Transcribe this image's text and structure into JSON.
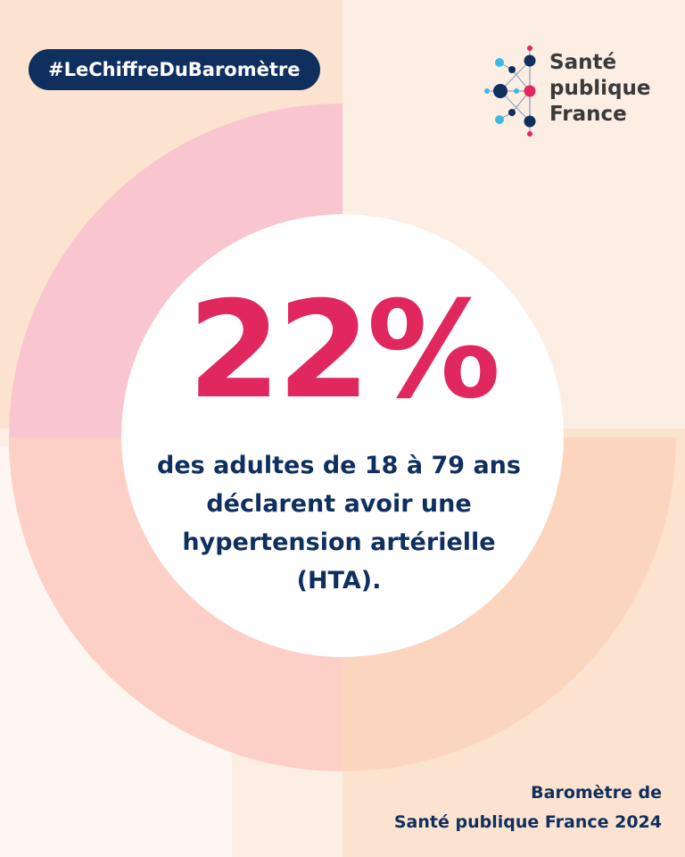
{
  "hashtag": "#LeChiffreDuBaromètre",
  "logo": {
    "line1": "Santé",
    "line2": "publique",
    "line3": "France"
  },
  "figure": {
    "value": "22%",
    "lines": [
      "des adultes de 18 à 79 ans",
      "déclarent avoir une",
      "hypertension artérielle",
      "(HTA)."
    ]
  },
  "source": {
    "line1": "Baromètre de",
    "line2": "Santé publique France 2024"
  },
  "colors": {
    "navy": "#0f2f5e",
    "accent_pink": "#e0285f",
    "ring_pink": "#f9c6cf",
    "ring_peach": "#fcd5be",
    "background_light": "#fdeee3",
    "background_peach": "#fbe3d0",
    "logo_cyan": "#3fb8e4"
  }
}
